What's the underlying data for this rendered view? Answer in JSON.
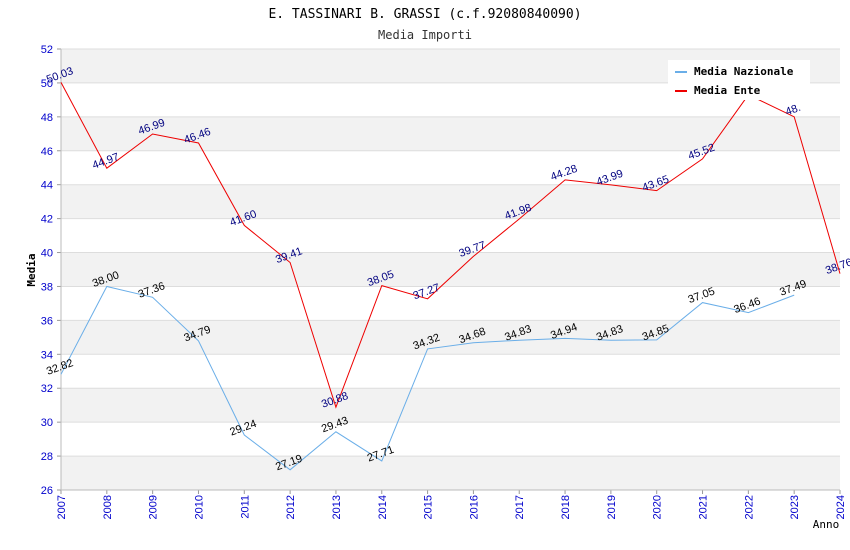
{
  "chart_data": {
    "type": "line",
    "title": "E. TASSINARI B. GRASSI (c.f.92080840090)",
    "subtitle": "Media Importi",
    "ylabel": "Media",
    "xlabel": "Anno",
    "ylim": [
      26,
      52
    ],
    "yticks": [
      "26",
      "28",
      "30",
      "32",
      "34",
      "36",
      "38",
      "40",
      "42",
      "44",
      "46",
      "48",
      "50",
      "52"
    ],
    "categories": [
      "2007",
      "2008",
      "2009",
      "2010",
      "2011",
      "2012",
      "2013",
      "2014",
      "2015",
      "2016",
      "2017",
      "2018",
      "2019",
      "2020",
      "2021",
      "2022",
      "2023",
      "2024"
    ],
    "series": [
      {
        "name": "Media Nazionale",
        "color": "#6aaee8",
        "label_color": "#000000",
        "values": [
          32.82,
          38.0,
          37.36,
          34.79,
          29.24,
          27.19,
          29.43,
          27.71,
          34.32,
          34.68,
          34.83,
          34.94,
          34.83,
          34.85,
          37.05,
          36.46,
          37.49,
          null
        ],
        "labels": [
          "32.82",
          "38.00",
          "37.36",
          "34.79",
          "29.24",
          "27.19",
          "29.43",
          "27.71",
          "34.32",
          "34.68",
          "34.83",
          "34.94",
          "34.83",
          "34.85",
          "37.05",
          "36.46",
          "37.49",
          ""
        ]
      },
      {
        "name": "Media Ente",
        "color": "#ee0000",
        "label_color": "#000080",
        "values": [
          50.03,
          44.97,
          46.99,
          46.46,
          41.6,
          39.41,
          30.88,
          38.05,
          37.27,
          39.77,
          41.98,
          44.28,
          43.99,
          43.65,
          45.52,
          49.3,
          48.0,
          38.76
        ],
        "labels": [
          "50.03",
          "44.97",
          "46.99",
          "46.46",
          "41.60",
          "39.41",
          "30.88",
          "38.05",
          "37.27",
          "39.77",
          "41.98",
          "44.28",
          "43.99",
          "43.65",
          "45.52",
          "",
          "48.",
          "38.76"
        ]
      }
    ],
    "legend": "top-right",
    "grid": true
  }
}
